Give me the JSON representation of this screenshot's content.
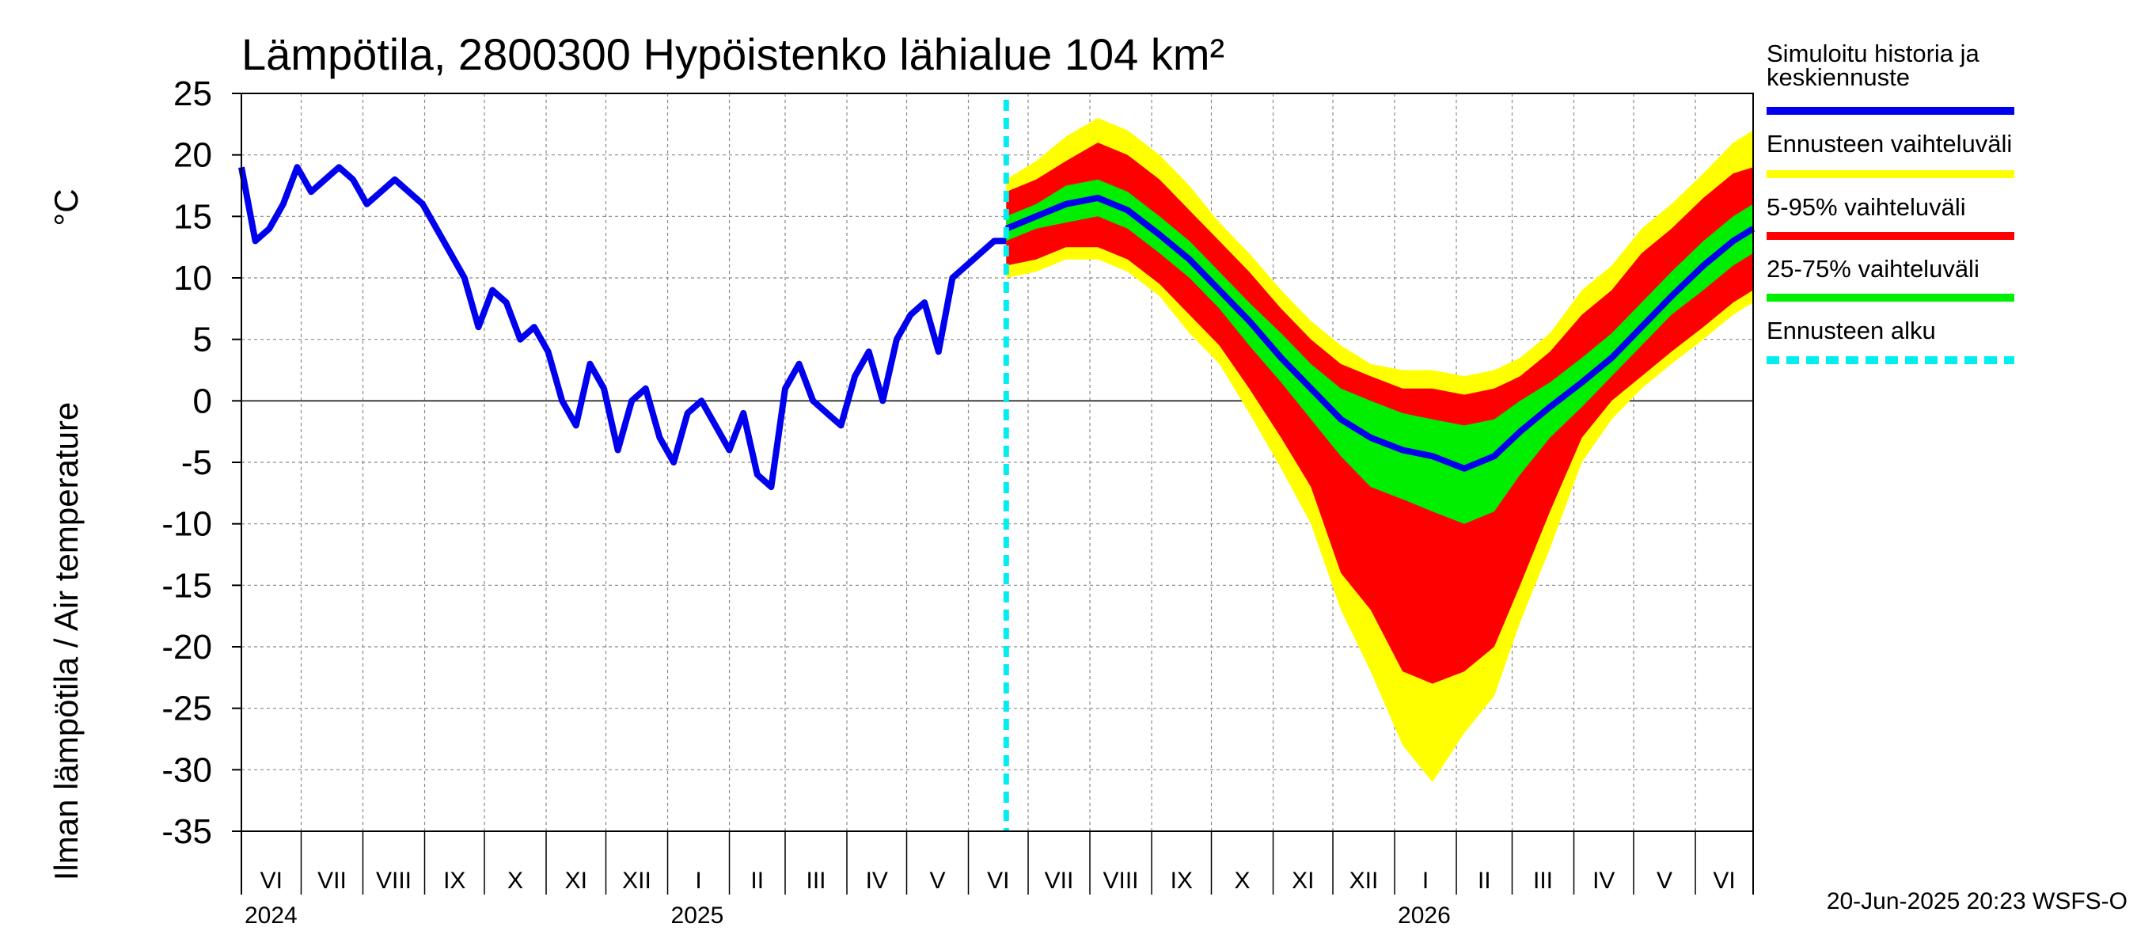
{
  "chart_data": {
    "type": "area",
    "title": "Lämpötila, 2800300 Hypöistenko lähialue 104 km²",
    "ylabel": "Ilman lämpötila / Air temperature",
    "yunit": "°C",
    "ylim": [
      -35,
      25
    ],
    "yticks": [
      25,
      20,
      15,
      10,
      5,
      0,
      -5,
      -10,
      -15,
      -20,
      -25,
      -30,
      -35
    ],
    "x_start": "2024-06-01",
    "x_end": "2026-06-30",
    "months": [
      {
        "label": "VI",
        "start": "2024-06-01"
      },
      {
        "label": "VII",
        "start": "2024-07-01"
      },
      {
        "label": "VIII",
        "start": "2024-08-01"
      },
      {
        "label": "IX",
        "start": "2024-09-01"
      },
      {
        "label": "X",
        "start": "2024-10-01"
      },
      {
        "label": "XI",
        "start": "2024-11-01"
      },
      {
        "label": "XII",
        "start": "2024-12-01"
      },
      {
        "label": "I",
        "start": "2025-01-01"
      },
      {
        "label": "II",
        "start": "2025-02-01"
      },
      {
        "label": "III",
        "start": "2025-03-01"
      },
      {
        "label": "IV",
        "start": "2025-04-01"
      },
      {
        "label": "V",
        "start": "2025-05-01"
      },
      {
        "label": "VI",
        "start": "2025-06-01"
      },
      {
        "label": "VII",
        "start": "2025-07-01"
      },
      {
        "label": "VIII",
        "start": "2025-08-01"
      },
      {
        "label": "IX",
        "start": "2025-09-01"
      },
      {
        "label": "X",
        "start": "2025-10-01"
      },
      {
        "label": "XI",
        "start": "2025-11-01"
      },
      {
        "label": "XII",
        "start": "2025-12-01"
      },
      {
        "label": "I",
        "start": "2026-01-01"
      },
      {
        "label": "II",
        "start": "2026-02-01"
      },
      {
        "label": "III",
        "start": "2026-03-01"
      },
      {
        "label": "IV",
        "start": "2026-04-01"
      },
      {
        "label": "V",
        "start": "2026-05-01"
      },
      {
        "label": "VI",
        "start": "2026-06-01"
      }
    ],
    "years": [
      {
        "label": "2024",
        "start": "2024-06-01"
      },
      {
        "label": "2025",
        "start": "2025-01-01"
      },
      {
        "label": "2026",
        "start": "2026-01-01"
      }
    ],
    "forecast_start": "2025-06-20",
    "history": {
      "name": "Simuloitu historia ja keskiennuste",
      "dates": [
        "2024-06-01",
        "2024-06-08",
        "2024-06-15",
        "2024-06-22",
        "2024-06-29",
        "2024-07-06",
        "2024-07-13",
        "2024-07-20",
        "2024-07-27",
        "2024-08-03",
        "2024-08-10",
        "2024-08-17",
        "2024-08-24",
        "2024-08-31",
        "2024-09-07",
        "2024-09-14",
        "2024-09-21",
        "2024-09-28",
        "2024-10-05",
        "2024-10-12",
        "2024-10-19",
        "2024-10-26",
        "2024-11-02",
        "2024-11-09",
        "2024-11-16",
        "2024-11-23",
        "2024-11-30",
        "2024-12-07",
        "2024-12-14",
        "2024-12-21",
        "2024-12-28",
        "2025-01-04",
        "2025-01-11",
        "2025-01-18",
        "2025-01-25",
        "2025-02-01",
        "2025-02-08",
        "2025-02-15",
        "2025-02-22",
        "2025-03-01",
        "2025-03-08",
        "2025-03-15",
        "2025-03-22",
        "2025-03-29",
        "2025-04-05",
        "2025-04-12",
        "2025-04-19",
        "2025-04-26",
        "2025-05-03",
        "2025-05-10",
        "2025-05-17",
        "2025-05-24",
        "2025-05-31",
        "2025-06-07",
        "2025-06-14",
        "2025-06-20"
      ],
      "values": [
        19,
        13,
        14,
        16,
        19,
        17,
        18,
        19,
        18,
        16,
        17,
        18,
        17,
        16,
        14,
        12,
        10,
        6,
        9,
        8,
        5,
        6,
        4,
        0,
        -2,
        3,
        1,
        -4,
        0,
        1,
        -3,
        -5,
        -1,
        0,
        -2,
        -4,
        -1,
        -6,
        -7,
        1,
        3,
        0,
        -1,
        -2,
        2,
        4,
        0,
        5,
        7,
        8,
        4,
        10,
        11,
        12,
        13,
        13
      ]
    },
    "forecast": {
      "dates": [
        "2025-06-20",
        "2025-07-05",
        "2025-07-20",
        "2025-08-05",
        "2025-08-20",
        "2025-09-05",
        "2025-09-20",
        "2025-10-05",
        "2025-10-20",
        "2025-11-05",
        "2025-11-20",
        "2025-12-05",
        "2025-12-20",
        "2026-01-05",
        "2026-01-20",
        "2026-02-05",
        "2026-02-20",
        "2026-03-05",
        "2026-03-20",
        "2026-04-05",
        "2026-04-20",
        "2026-05-05",
        "2026-05-20",
        "2026-06-05",
        "2026-06-20",
        "2026-06-30"
      ],
      "median": [
        14,
        15,
        16,
        16.5,
        15.5,
        13.5,
        11.5,
        9,
        6.5,
        3.5,
        1,
        -1.5,
        -3,
        -4,
        -4.5,
        -5.5,
        -4.5,
        -2.5,
        -0.5,
        1.5,
        3.5,
        6,
        8.5,
        11,
        13,
        14
      ],
      "p25": [
        13,
        14,
        14.5,
        15,
        14,
        12,
        10,
        7.5,
        4.5,
        1.5,
        -1.5,
        -4.5,
        -7,
        -8,
        -9,
        -10,
        -9,
        -6,
        -3,
        -0.5,
        2,
        4.5,
        7,
        9,
        11,
        12
      ],
      "p75": [
        15,
        16,
        17.5,
        18,
        17,
        15,
        13,
        10.5,
        8,
        5.5,
        3,
        1,
        0,
        -1,
        -1.5,
        -2,
        -1.5,
        0,
        1.5,
        3.5,
        5.5,
        8,
        10.5,
        13,
        15,
        16
      ],
      "p05": [
        11,
        11.5,
        12.5,
        12.5,
        11.5,
        9.5,
        7,
        4.5,
        1,
        -3,
        -7,
        -14,
        -17,
        -22,
        -23,
        -22,
        -20,
        -15,
        -9,
        -3,
        0,
        2,
        4,
        6,
        8,
        9
      ],
      "p95": [
        17,
        18,
        19.5,
        21,
        20,
        18,
        15.5,
        13,
        10.5,
        7.5,
        5,
        3,
        2,
        1,
        1,
        0.5,
        1,
        2,
        4,
        7,
        9,
        12,
        14,
        16.5,
        18.5,
        19
      ],
      "min": [
        10,
        10.5,
        11.5,
        11.5,
        10.5,
        8.5,
        5.5,
        3,
        -1,
        -5.5,
        -10,
        -17,
        -22,
        -28,
        -31,
        -27,
        -24,
        -18,
        -12,
        -5,
        -1.5,
        1,
        3,
        5,
        7,
        8
      ],
      "max": [
        18,
        19.5,
        21.5,
        23,
        22,
        20,
        17.5,
        14.5,
        12,
        9,
        6.5,
        4.5,
        3,
        2.5,
        2.5,
        2,
        2.5,
        3.5,
        5.5,
        9,
        11,
        14,
        16,
        18.5,
        21,
        22
      ]
    },
    "legend": [
      {
        "label_lines": [
          "Simuloitu historia ja",
          "keskiennuste"
        ],
        "color": "#0000ee",
        "style": "solid"
      },
      {
        "label_lines": [
          "Ennusteen vaihteluväli"
        ],
        "color": "#ffff00",
        "style": "solid"
      },
      {
        "label_lines": [
          "5-95% vaihteluväli"
        ],
        "color": "#ff0000",
        "style": "solid"
      },
      {
        "label_lines": [
          "25-75% vaihteluväli"
        ],
        "color": "#00ee00",
        "style": "solid"
      },
      {
        "label_lines": [
          "Ennusteen alku"
        ],
        "color": "#00eeee",
        "style": "dashed"
      }
    ],
    "footer": "20-Jun-2025 20:23 WSFS-O",
    "grid": true
  }
}
